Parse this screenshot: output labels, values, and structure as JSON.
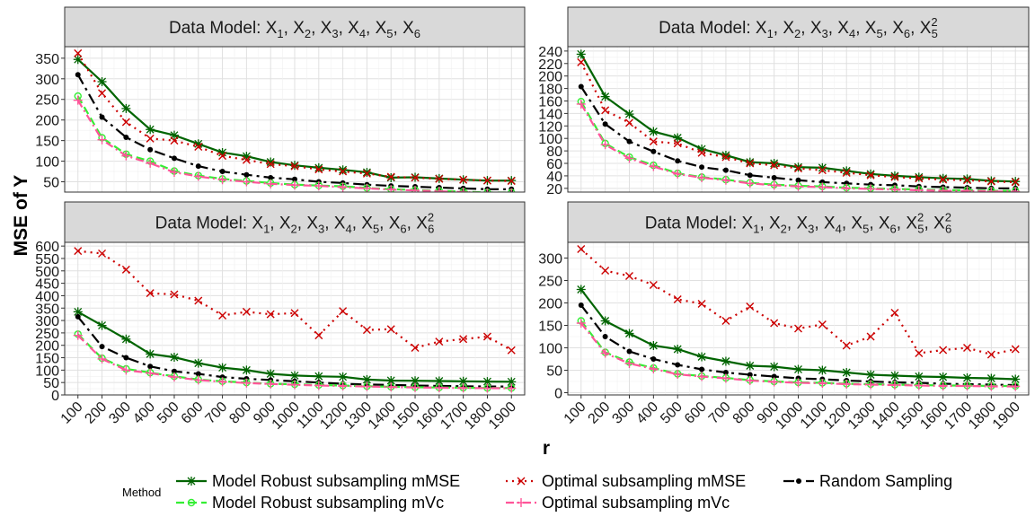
{
  "chart_data": {
    "type": "line",
    "xlabel": "r",
    "ylabel": "MSE of Y",
    "x": [
      100,
      200,
      300,
      400,
      500,
      600,
      700,
      800,
      900,
      1000,
      1100,
      1200,
      1300,
      1400,
      1500,
      1600,
      1700,
      1800,
      1900
    ],
    "x_tick_labels": [
      "100",
      "200",
      "300",
      "400",
      "500",
      "600",
      "700",
      "800",
      "900",
      "1000",
      "1100",
      "1200",
      "1300",
      "1400",
      "1500",
      "1600",
      "1700",
      "1800",
      "1900"
    ],
    "legend": {
      "title": "Method",
      "position": "bottom",
      "entries": [
        {
          "name": "Model Robust subsampling mMSE",
          "color": "#006400",
          "dash": "",
          "marker": "asterisk"
        },
        {
          "name": "Model Robust subsampling mVc",
          "color": "#33ee33",
          "dash": "9,5",
          "marker": "circle-open"
        },
        {
          "name": "Optimal subsampling mMSE",
          "color": "#cc0000",
          "dash": "2,5",
          "marker": "x"
        },
        {
          "name": "Optimal subsampling mVc",
          "color": "#ff5599",
          "dash": "9,4,2,4",
          "marker": "plus"
        },
        {
          "name": "Random Sampling",
          "color": "#000000",
          "dash": "12,5,3,5",
          "marker": "dot"
        }
      ]
    },
    "panels": [
      {
        "title_base": "Data Model: X",
        "title_terms": [
          {
            "s": "1"
          },
          {
            "s": "2"
          },
          {
            "s": "3"
          },
          {
            "s": "4"
          },
          {
            "s": "5"
          },
          {
            "s": "6"
          }
        ],
        "ylim": [
          25,
          378
        ],
        "yticks": [
          50,
          100,
          150,
          200,
          250,
          300,
          350
        ],
        "grid": true,
        "series": [
          {
            "name": "Model Robust subsampling mMSE",
            "values": [
              347,
              293,
              228,
              177,
              163,
              142,
              121,
              112,
              98,
              90,
              84,
              79,
              73,
              60,
              61,
              58,
              55,
              53,
              53
            ]
          },
          {
            "name": "Model Robust subsampling mVc",
            "values": [
              258,
              157,
              117,
              100,
              76,
              65,
              57,
              52,
              47,
              43,
              41,
              39,
              35,
              32,
              30,
              28,
              26,
              24,
              24
            ]
          },
          {
            "name": "Optimal subsampling mMSE",
            "values": [
              362,
              265,
              195,
              155,
              150,
              135,
              113,
              103,
              93,
              88,
              80,
              75,
              70,
              62,
              60,
              57,
              55,
              53,
              52
            ]
          },
          {
            "name": "Optimal subsampling mVc",
            "values": [
              248,
              152,
              113,
              95,
              73,
              63,
              55,
              50,
              45,
              42,
              40,
              37,
              34,
              31,
              29,
              27,
              25,
              23,
              23
            ]
          },
          {
            "name": "Random Sampling",
            "values": [
              310,
              207,
              158,
              128,
              107,
              88,
              75,
              67,
              60,
              56,
              50,
              47,
              43,
              40,
              38,
              36,
              34,
              32,
              32
            ]
          }
        ]
      },
      {
        "title_base": "Data Model: X",
        "title_terms": [
          {
            "s": "1"
          },
          {
            "s": "2"
          },
          {
            "s": "3"
          },
          {
            "s": "4"
          },
          {
            "s": "5"
          },
          {
            "s": "6"
          },
          {
            "s": "5",
            "p": "2"
          }
        ],
        "ylim": [
          14,
          247
        ],
        "yticks": [
          20,
          40,
          60,
          80,
          100,
          120,
          140,
          160,
          180,
          200,
          220,
          240
        ],
        "grid": true,
        "series": [
          {
            "name": "Model Robust subsampling mMSE",
            "values": [
              235,
              167,
              139,
              111,
              101,
              83,
              73,
              62,
              60,
              54,
              53,
              48,
              43,
              40,
              38,
              36,
              35,
              32,
              31
            ]
          },
          {
            "name": "Model Robust subsampling mVc",
            "values": [
              159,
              92,
              70,
              57,
              44,
              38,
              34,
              29,
              26,
              24,
              23,
              21,
              20,
              19,
              18,
              17,
              17,
              16,
              16
            ]
          },
          {
            "name": "Optimal subsampling mMSE",
            "values": [
              222,
              145,
              125,
              95,
              92,
              77,
              70,
              60,
              57,
              52,
              49,
              45,
              41,
              38,
              36,
              34,
              33,
              31,
              30
            ]
          },
          {
            "name": "Optimal subsampling mVc",
            "values": [
              155,
              90,
              68,
              55,
              43,
              37,
              33,
              28,
              25,
              23,
              22,
              20,
              19,
              18,
              17,
              16,
              16,
              15,
              15
            ]
          },
          {
            "name": "Random Sampling",
            "values": [
              183,
              123,
              95,
              79,
              64,
              54,
              49,
              41,
              37,
              33,
              30,
              28,
              26,
              25,
              23,
              22,
              21,
              20,
              20
            ]
          }
        ]
      },
      {
        "title_base": "Data Model: X",
        "title_terms": [
          {
            "s": "1"
          },
          {
            "s": "2"
          },
          {
            "s": "3"
          },
          {
            "s": "4"
          },
          {
            "s": "5"
          },
          {
            "s": "6"
          },
          {
            "s": "6",
            "p": "2"
          }
        ],
        "ylim": [
          0,
          615
        ],
        "yticks": [
          0,
          50,
          100,
          150,
          200,
          250,
          300,
          350,
          400,
          450,
          500,
          550,
          600
        ],
        "grid": true,
        "series": [
          {
            "name": "Model Robust subsampling mMSE",
            "values": [
              335,
              280,
              225,
              165,
              152,
              128,
              110,
              100,
              85,
              78,
              75,
              73,
              62,
              58,
              57,
              56,
              55,
              54,
              53
            ]
          },
          {
            "name": "Model Robust subsampling mVc",
            "values": [
              245,
              148,
              105,
              90,
              75,
              62,
              55,
              50,
              45,
              43,
              40,
              38,
              35,
              33,
              31,
              30,
              29,
              28,
              28
            ]
          },
          {
            "name": "Optimal subsampling mMSE",
            "values": [
              580,
              570,
              505,
              410,
              405,
              380,
              320,
              335,
              325,
              330,
              240,
              338,
              262,
              265,
              190,
              215,
              225,
              235,
              180
            ]
          },
          {
            "name": "Optimal subsampling mVc",
            "values": [
              240,
              145,
              100,
              88,
              72,
              60,
              53,
              48,
              44,
              41,
              38,
              36,
              34,
              32,
              30,
              29,
              28,
              27,
              27
            ]
          },
          {
            "name": "Random Sampling",
            "values": [
              315,
              195,
              150,
              115,
              95,
              85,
              72,
              65,
              60,
              55,
              50,
              45,
              42,
              40,
              38,
              36,
              35,
              34,
              34
            ]
          }
        ]
      },
      {
        "title_base": "Data Model: X",
        "title_terms": [
          {
            "s": "1"
          },
          {
            "s": "2"
          },
          {
            "s": "3"
          },
          {
            "s": "4"
          },
          {
            "s": "5"
          },
          {
            "s": "6"
          },
          {
            "s": "5",
            "p": "2"
          },
          {
            "s": "6",
            "p": "2"
          }
        ],
        "ylim": [
          -5,
          335
        ],
        "yticks": [
          0,
          50,
          100,
          150,
          200,
          250,
          300
        ],
        "grid": true,
        "series": [
          {
            "name": "Model Robust subsampling mMSE",
            "values": [
              230,
              160,
              132,
              105,
              97,
              80,
              70,
              60,
              58,
              52,
              50,
              45,
              40,
              38,
              36,
              35,
              33,
              32,
              30
            ]
          },
          {
            "name": "Model Robust subsampling mVc",
            "values": [
              160,
              90,
              68,
              55,
              42,
              37,
              33,
              28,
              25,
              23,
              22,
              20,
              19,
              18,
              17,
              16,
              16,
              15,
              15
            ]
          },
          {
            "name": "Optimal subsampling mMSE",
            "values": [
              320,
              272,
              260,
              240,
              208,
              198,
              160,
              192,
              155,
              143,
              152,
              105,
              125,
              178,
              88,
              95,
              100,
              85,
              97
            ]
          },
          {
            "name": "Optimal subsampling mVc",
            "values": [
              155,
              88,
              65,
              53,
              41,
              36,
              32,
              27,
              24,
              22,
              21,
              19,
              18,
              17,
              16,
              15,
              15,
              14,
              14
            ]
          },
          {
            "name": "Random Sampling",
            "values": [
              195,
              125,
              92,
              75,
              62,
              52,
              45,
              40,
              36,
              32,
              30,
              27,
              25,
              23,
              22,
              20,
              19,
              18,
              17
            ]
          }
        ]
      }
    ]
  }
}
